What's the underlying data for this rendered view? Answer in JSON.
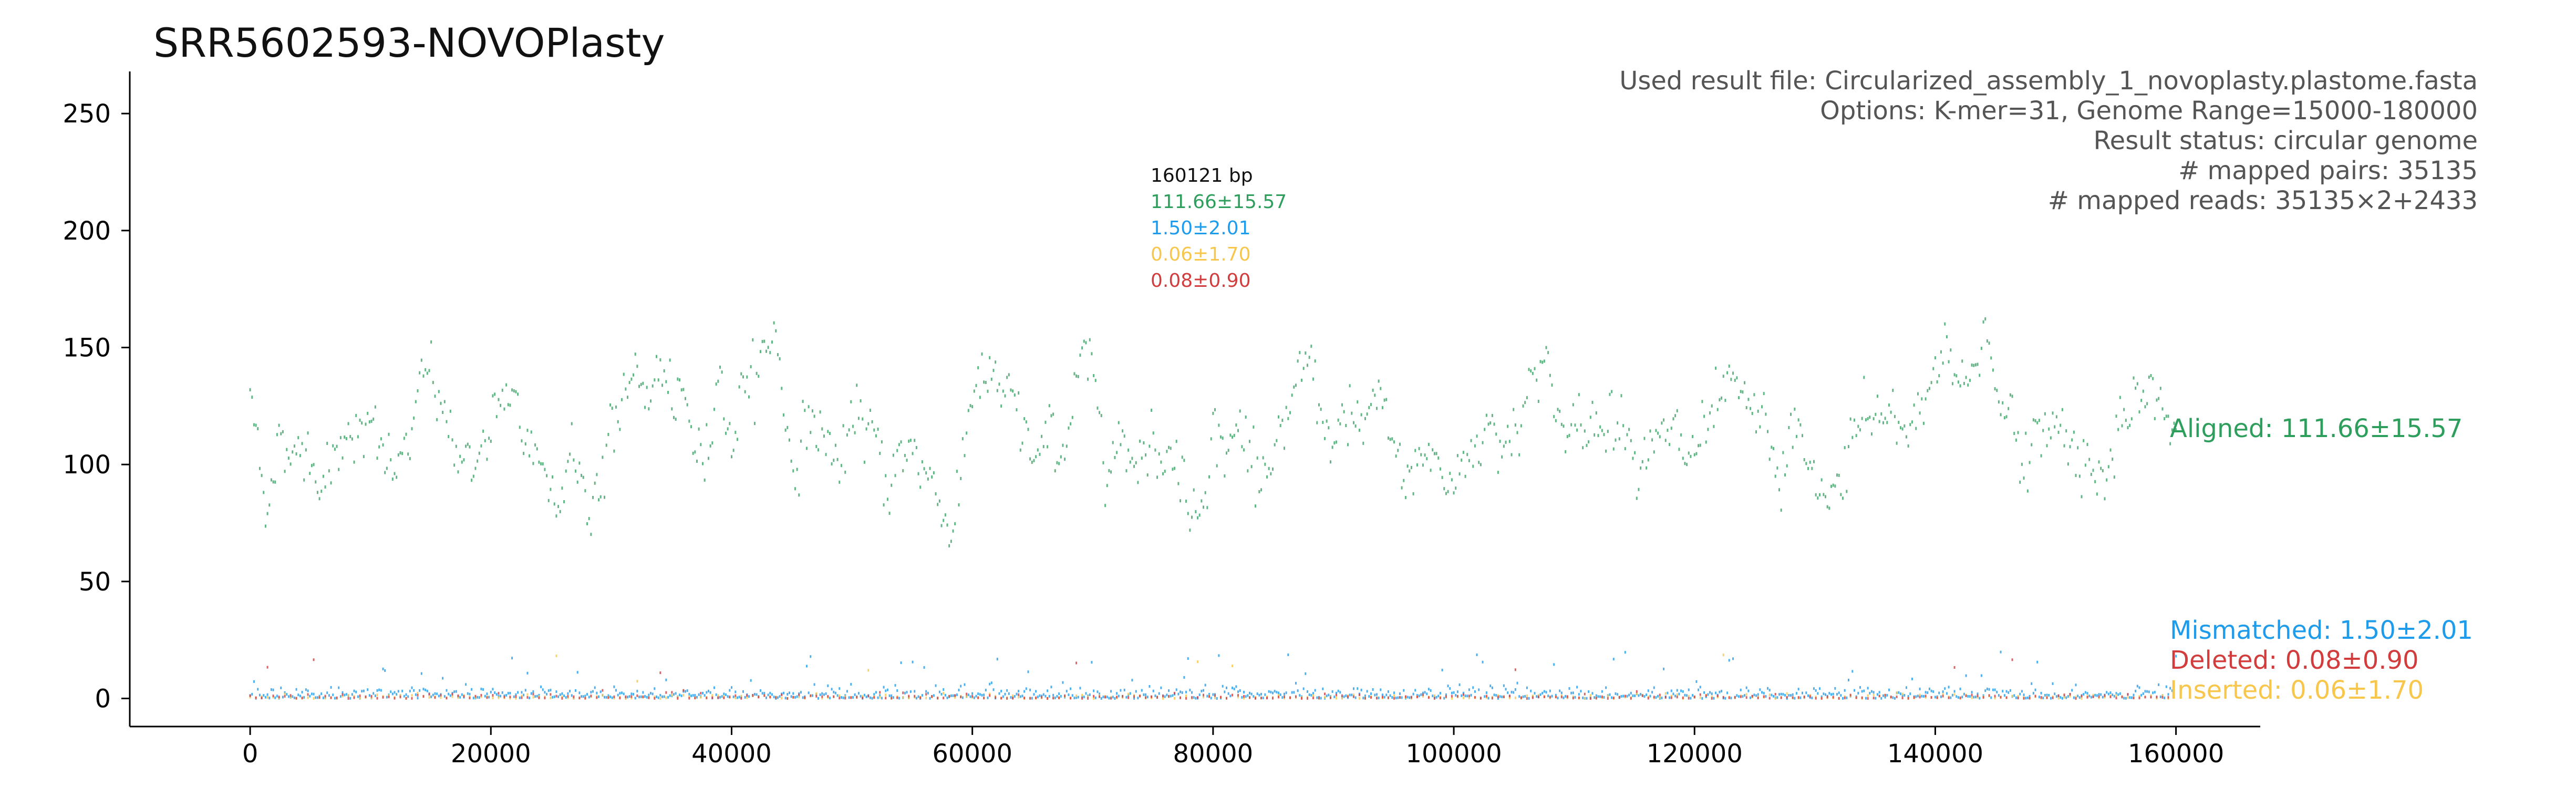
{
  "chart_data": {
    "type": "scatter",
    "title": "SRR5602593-NOVOPlasty",
    "xlabel": "",
    "ylabel": "",
    "xlim": [
      -10000,
      167000
    ],
    "ylim": [
      -12,
      268
    ],
    "x_ticks": [
      0,
      20000,
      40000,
      60000,
      80000,
      100000,
      120000,
      140000,
      160000
    ],
    "x_tick_labels": [
      "0",
      "20000",
      "40000",
      "60000",
      "80000",
      "100000",
      "120000",
      "140000",
      "160000"
    ],
    "y_ticks": [
      0,
      50,
      100,
      150,
      200,
      250
    ],
    "y_tick_labels": [
      "0",
      "50",
      "100",
      "150",
      "200",
      "250"
    ],
    "grid": false,
    "info_lines": [
      "Used result file: Circularized_assembly_1_novoplasty.plastome.fasta",
      "Options: K-mer=31, Genome Range=15000-180000",
      "Result status: circular genome",
      "# mapped pairs: 35135",
      "# mapped reads: 35135×2+2433"
    ],
    "stats": {
      "length_label": "160121 bp",
      "aligned": "111.66±15.57",
      "mismatched": "1.50±2.01",
      "inserted": "0.06±1.70",
      "deleted": "0.08±0.90"
    },
    "genome_length": 160121,
    "series": [
      {
        "name": "Aligned: 111.66±15.57",
        "color": "#2e9e5c",
        "mean": 111.66,
        "sd": 15.57,
        "profile_x": [
          0,
          1500,
          3000,
          5000,
          7000,
          8000,
          10000,
          12000,
          14000,
          15000,
          17000,
          19000,
          21000,
          23000,
          25000,
          26500,
          28000,
          30000,
          32000,
          34000,
          36000,
          38000,
          39000,
          40000,
          41000,
          42000,
          43500,
          45000,
          47000,
          49000,
          51000,
          53000,
          55000,
          57000,
          58500,
          60000,
          62000,
          64000,
          66000,
          68000,
          69500,
          71000,
          73000,
          75000,
          77000,
          78500,
          80000,
          82000,
          84000,
          86000,
          88000,
          90000,
          92000,
          94000,
          96000,
          98000,
          100000,
          102000,
          104000,
          106000,
          107500,
          109000,
          111000,
          113000,
          115000,
          117000,
          119000,
          121000,
          123000,
          125000,
          127000,
          129000,
          131000,
          133000,
          135000,
          137000,
          139000,
          141000,
          142500,
          144000,
          146000,
          148000,
          150000,
          152000,
          154000,
          156000,
          158000,
          160121
        ],
        "profile_y": [
          128,
          90,
          112,
          105,
          100,
          125,
          108,
          95,
          118,
          140,
          112,
          100,
          122,
          108,
          95,
          112,
          80,
          115,
          130,
          140,
          110,
          100,
          155,
          105,
          145,
          140,
          160,
          105,
          120,
          100,
          112,
          98,
          108,
          90,
          75,
          140,
          130,
          112,
          100,
          120,
          145,
          115,
          110,
          118,
          100,
          80,
          120,
          112,
          100,
          108,
          140,
          105,
          112,
          118,
          95,
          108,
          85,
          120,
          110,
          130,
          150,
          118,
          108,
          125,
          118,
          110,
          100,
          108,
          118,
          115,
          95,
          110,
          75,
          108,
          120,
          112,
          130,
          155,
          125,
          160,
          125,
          100,
          118,
          110,
          95,
          112,
          130,
          112
        ],
        "noise": 9
      },
      {
        "name": "Mismatched: 1.50±2.01",
        "color": "#1e9ceb",
        "mean": 1.5,
        "sd": 2.01
      },
      {
        "name": "Deleted: 0.08±0.90",
        "color": "#d23c3c",
        "mean": 0.08,
        "sd": 0.9
      },
      {
        "name": "Inserted: 0.06±1.70",
        "color": "#f7c64b",
        "mean": 0.06,
        "sd": 1.7
      }
    ]
  }
}
